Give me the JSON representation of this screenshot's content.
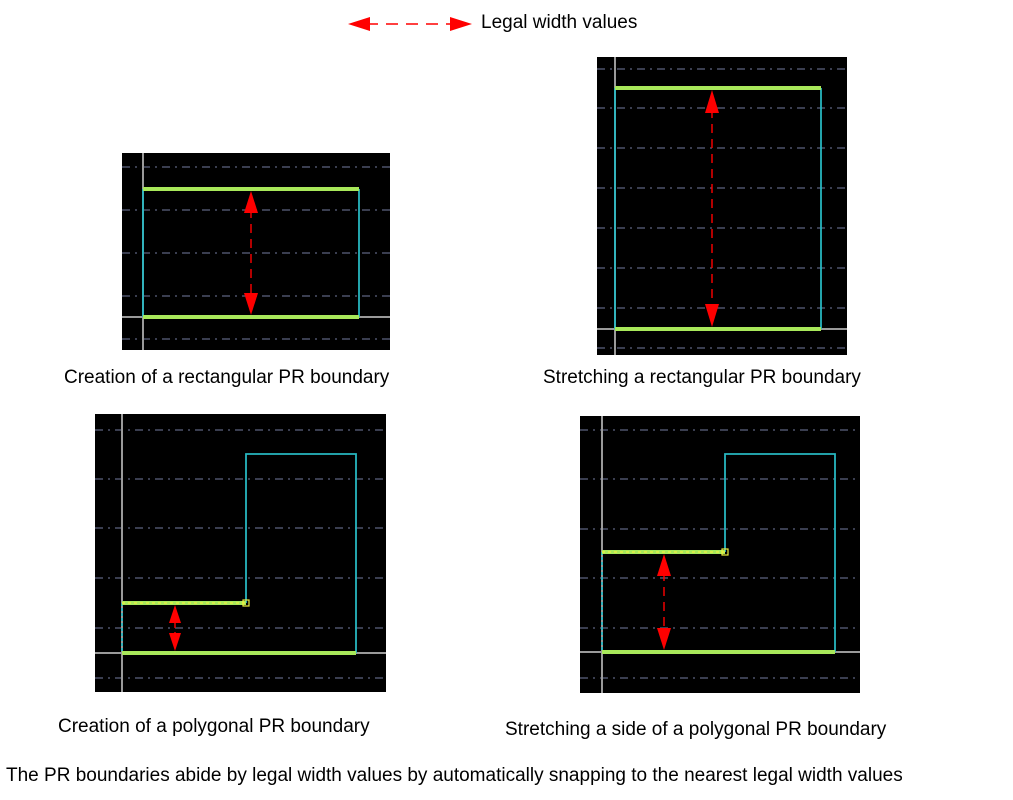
{
  "legend": {
    "label": "Legal width values"
  },
  "panels": [
    {
      "id": "rect-create",
      "caption": "Creation of a rectangular PR boundary"
    },
    {
      "id": "rect-stretch",
      "caption": "Stretching a rectangular PR boundary"
    },
    {
      "id": "poly-create",
      "caption": "Creation of a polygonal PR boundary"
    },
    {
      "id": "poly-stretch",
      "caption": "Stretching a side of a polygonal PR boundary"
    }
  ],
  "footer": {
    "text": "The PR boundaries abide by legal width values by automatically snapping to the nearest legal width values"
  },
  "colors": {
    "background": "#000000",
    "grid": "#5d6380",
    "axis": "#9a9a9a",
    "boundary": "#27b6c0",
    "snapped_edge": "#a8e85a",
    "snapped_edge_core": "#e8f070",
    "arrow": "#ff0000"
  }
}
